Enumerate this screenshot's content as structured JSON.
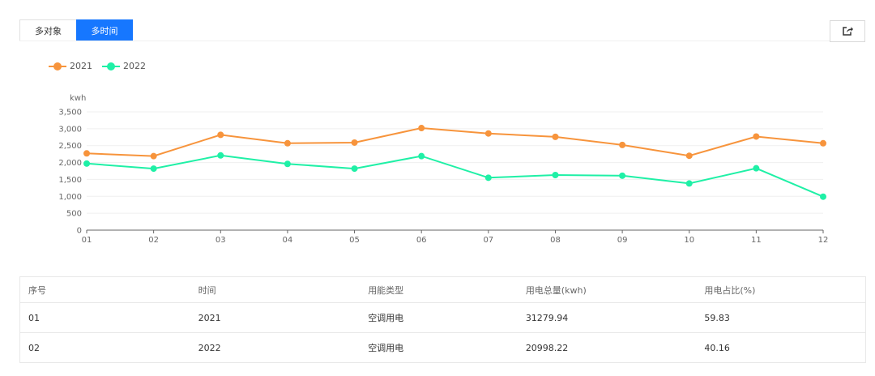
{
  "tabs": [
    {
      "label": "多对象",
      "active": false
    },
    {
      "label": "多时间",
      "active": true
    }
  ],
  "export_icon": "share-export-icon",
  "chart_data": {
    "type": "line",
    "ylabel": "kwh",
    "ylim": [
      0,
      3500
    ],
    "yticks": [
      "0",
      "500",
      "1,000",
      "1,500",
      "2,000",
      "2,500",
      "3,000",
      "3,500"
    ],
    "categories": [
      "01",
      "02",
      "03",
      "04",
      "05",
      "06",
      "07",
      "08",
      "09",
      "10",
      "11",
      "12"
    ],
    "legend_position": "top-left",
    "series": [
      {
        "name": "2021",
        "color": "#f7943c",
        "values": [
          2270,
          2190,
          2820,
          2570,
          2590,
          3020,
          2860,
          2760,
          2520,
          2200,
          2770,
          2570
        ]
      },
      {
        "name": "2022",
        "color": "#1ff0a6",
        "values": [
          1970,
          1820,
          2210,
          1960,
          1820,
          2190,
          1550,
          1630,
          1610,
          1380,
          1830,
          990
        ]
      }
    ]
  },
  "table": {
    "headers": [
      "序号",
      "时间",
      "用能类型",
      "用电总量(kwh)",
      "用电占比(%)"
    ],
    "rows": [
      [
        "01",
        "2021",
        "空调用电",
        "31279.94",
        "59.83"
      ],
      [
        "02",
        "2022",
        "空调用电",
        "20998.22",
        "40.16"
      ]
    ]
  }
}
